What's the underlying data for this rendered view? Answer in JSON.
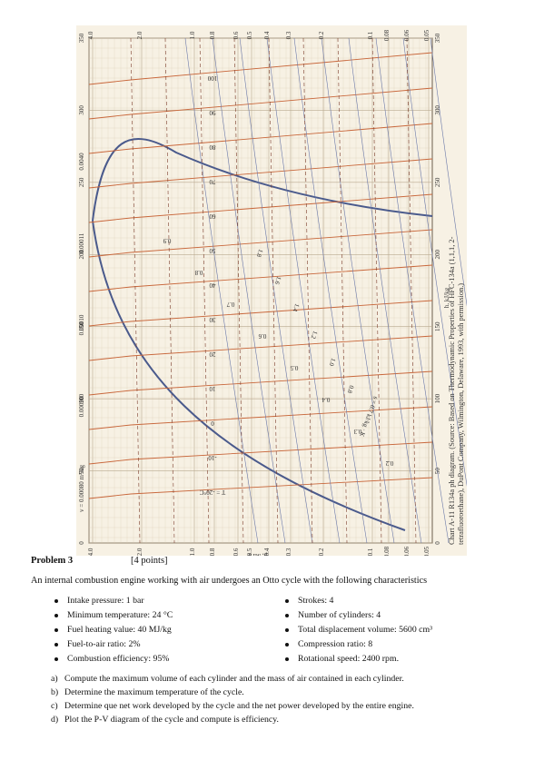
{
  "chart": {
    "axis_top_pressures": [
      "4.0",
      "2.0",
      "1.0",
      "0.8",
      "0.6",
      "0.5",
      "0.4",
      "0.3",
      "0.2",
      "0.1",
      "0.08",
      "0.06",
      "0.05"
    ],
    "axis_bottom_pressures": [
      "4.0",
      "2.0",
      "1.0",
      "0.8",
      "0.6",
      "0.5",
      "0.4",
      "0.3",
      "0.2",
      "0.1",
      "0.08",
      "0.06",
      "0.05"
    ],
    "axis_left_enthalpy": [
      "350",
      "300",
      "250",
      "200",
      "150",
      "100",
      "50",
      "0"
    ],
    "axis_right_enthalpy": [
      "350",
      "300",
      "250",
      "200",
      "150",
      "100",
      "50",
      "0"
    ],
    "pressure_axis_label": "p, MPa",
    "enthalpy_axis_label": "h, kJ/kg",
    "volume_labels": [
      "0.0040",
      "0.00011",
      "0.00010",
      "0.00090",
      "v = 0.00080 m³/kg"
    ],
    "quality_labels": [
      "0.9",
      "0.8",
      "0.7",
      "0.6",
      "0.5",
      "0.4",
      "0.3",
      "0.2"
    ],
    "temperature_labels": [
      "100",
      "90",
      "80",
      "70",
      "60",
      "50",
      "40",
      "30",
      "20",
      "10",
      "0",
      "-10",
      "T = -20°C"
    ],
    "entropy_labels": [
      "1.8",
      "1.6",
      "1.4",
      "1.2",
      "1.0",
      "0.8",
      "s = 0.7 kJ/kg · K"
    ],
    "caption_line1": "Chart A-11  R134a ph diagram. (Source: Based on Thermodynamic Properties of HFC-134a (1,1,1, 2-",
    "caption_line2": "tetrafluoroethane), DuPont Company, Wilmington, Delaware, 1993, with permission.)"
  },
  "problem": {
    "title": "Problem 3",
    "points": "[4 points]",
    "intro": "An internal combustion engine working with air undergoes an Otto cycle with the following characteristics",
    "left_items": [
      "Intake pressure: 1 bar",
      "Minimum temperature: 24 °C",
      "Fuel heating value: 40 MJ/kg",
      "Fuel-to-air ratio: 2%",
      "Combustion efficiency: 95%"
    ],
    "right_items": [
      "Strokes: 4",
      "Number of cylinders: 4",
      "Total displacement volume: 5600 cm³",
      "Compression ratio: 8",
      "Rotational speed: 2400 rpm."
    ],
    "questions": [
      {
        "letter": "a)",
        "text": "Compute the maximum volume of each cylinder and the mass of air contained in each cylinder."
      },
      {
        "letter": "b)",
        "text": "Determine the maximum temperature of the cycle."
      },
      {
        "letter": "c)",
        "text": "Determine que net work developed by the cycle and the net power developed by the entire engine."
      },
      {
        "letter": "d)",
        "text": "Plot the P-V diagram of the cycle and compute is efficiency."
      }
    ]
  }
}
